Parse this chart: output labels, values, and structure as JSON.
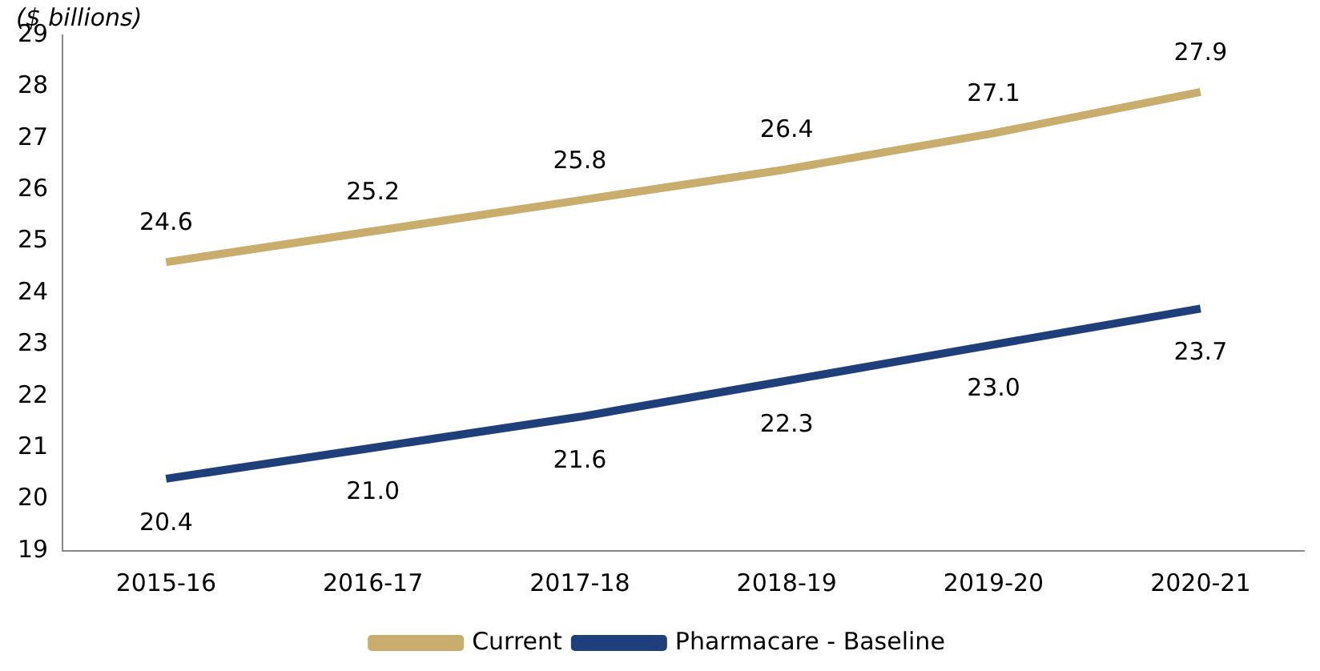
{
  "chart_data": {
    "type": "line",
    "ylabel": "($ billions)",
    "categories": [
      "2015-16",
      "2016-17",
      "2017-18",
      "2018-19",
      "2019-20",
      "2020-21"
    ],
    "series": [
      {
        "name": "Current",
        "color": "#c9ad6c",
        "values": [
          24.6,
          25.2,
          25.8,
          26.4,
          27.1,
          27.9
        ],
        "value_labels": [
          "24.6",
          "25.2",
          "25.8",
          "26.4",
          "27.1",
          "27.9"
        ]
      },
      {
        "name": "Pharmacare - Baseline",
        "color": "#1f3f7b",
        "values": [
          20.4,
          21.0,
          21.6,
          22.3,
          23.0,
          23.7
        ],
        "value_labels": [
          "20.4",
          "21.0",
          "21.6",
          "22.3",
          "23.0",
          "23.7"
        ]
      }
    ],
    "ylim": [
      19,
      29
    ],
    "yticks": [
      19,
      20,
      21,
      22,
      23,
      24,
      25,
      26,
      27,
      28,
      29
    ],
    "grid": false,
    "legend": "bottom",
    "marker": "none",
    "line_style": "solid"
  }
}
